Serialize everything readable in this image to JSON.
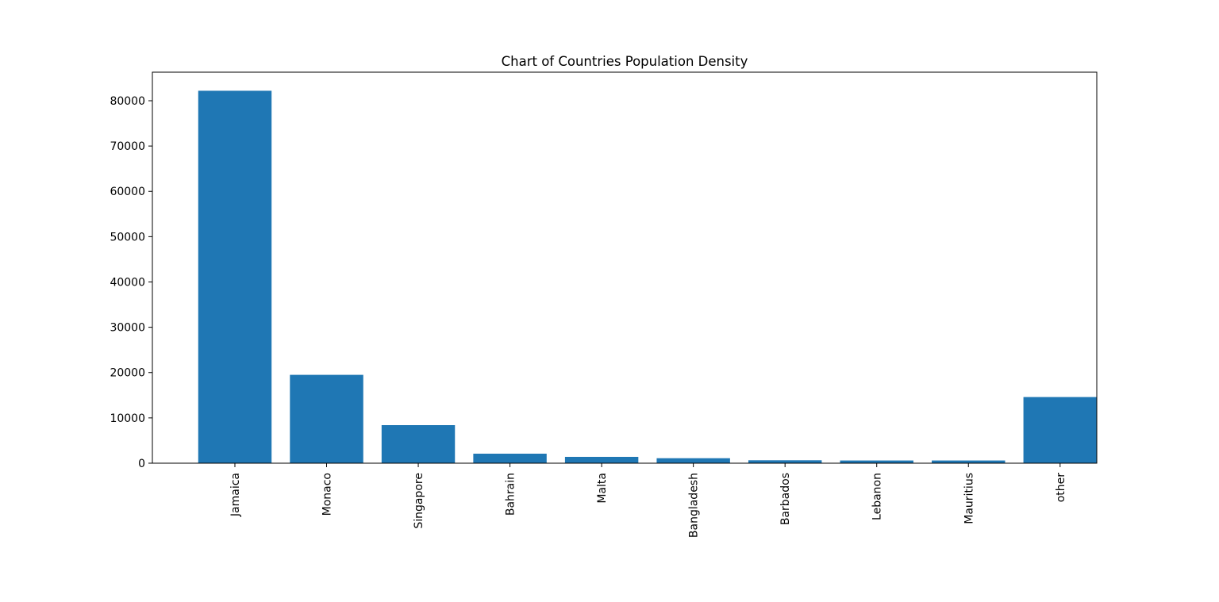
{
  "chart_data": {
    "type": "bar",
    "title": "Chart of Countries Population Density",
    "xlabel": "",
    "ylabel": "",
    "categories": [
      "Jamaica",
      "Monaco",
      "Singapore",
      "Bahrain",
      "Malta",
      "Bangladesh",
      "Barbados",
      "Lebanon",
      "Mauritius",
      "other"
    ],
    "values": [
      82200,
      19500,
      8400,
      2100,
      1400,
      1100,
      650,
      600,
      600,
      14600
    ],
    "ylim": [
      0,
      86300
    ],
    "yticks": [
      0,
      10000,
      20000,
      30000,
      40000,
      50000,
      60000,
      70000,
      80000
    ],
    "ytick_labels": [
      "0",
      "10000",
      "20000",
      "30000",
      "40000",
      "50000",
      "60000",
      "70000",
      "80000"
    ],
    "grid": false,
    "legend": "none",
    "colors": {
      "bar": "#1f77b4",
      "axis": "#000000",
      "background": "#ffffff"
    }
  }
}
